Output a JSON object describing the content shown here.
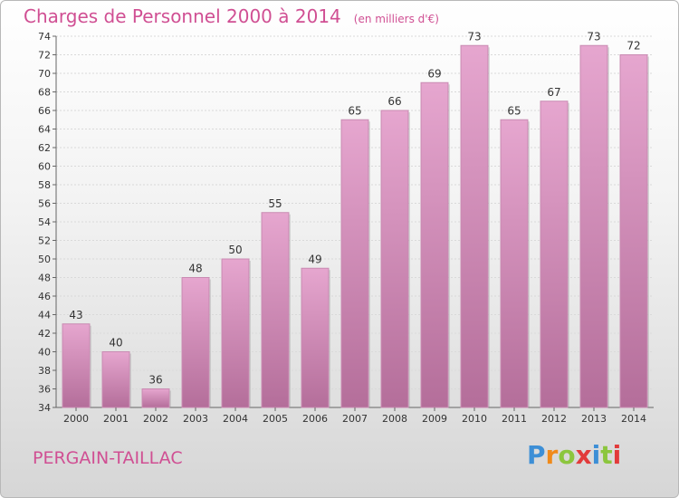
{
  "header": {
    "title": "Charges de Personnel 2000 à 2014",
    "subtitle": "(en milliers d'€)"
  },
  "footer": {
    "place": "PERGAIN-TAILLAC",
    "logo": "Proxiti"
  },
  "colors": {
    "title": "#d04f93",
    "bar_top": "#e6a6cf",
    "bar_bottom": "#b46e9a",
    "logo": [
      "#3d8fd6",
      "#f08a1a",
      "#8cc63e",
      "#e23b3b",
      "#3d8fd6",
      "#8cc63e",
      "#e23b3b"
    ]
  },
  "chart_data": {
    "type": "bar",
    "categories": [
      "2000",
      "2001",
      "2002",
      "2003",
      "2004",
      "2005",
      "2006",
      "2007",
      "2008",
      "2009",
      "2010",
      "2011",
      "2012",
      "2013",
      "2014"
    ],
    "values": [
      43,
      40,
      36,
      48,
      50,
      55,
      49,
      65,
      66,
      69,
      73,
      65,
      67,
      73,
      72
    ],
    "title": "Charges de Personnel 2000 à 2014",
    "ylim": [
      34,
      74
    ],
    "ytick_step": 2,
    "grid": true,
    "data_labels": true
  }
}
